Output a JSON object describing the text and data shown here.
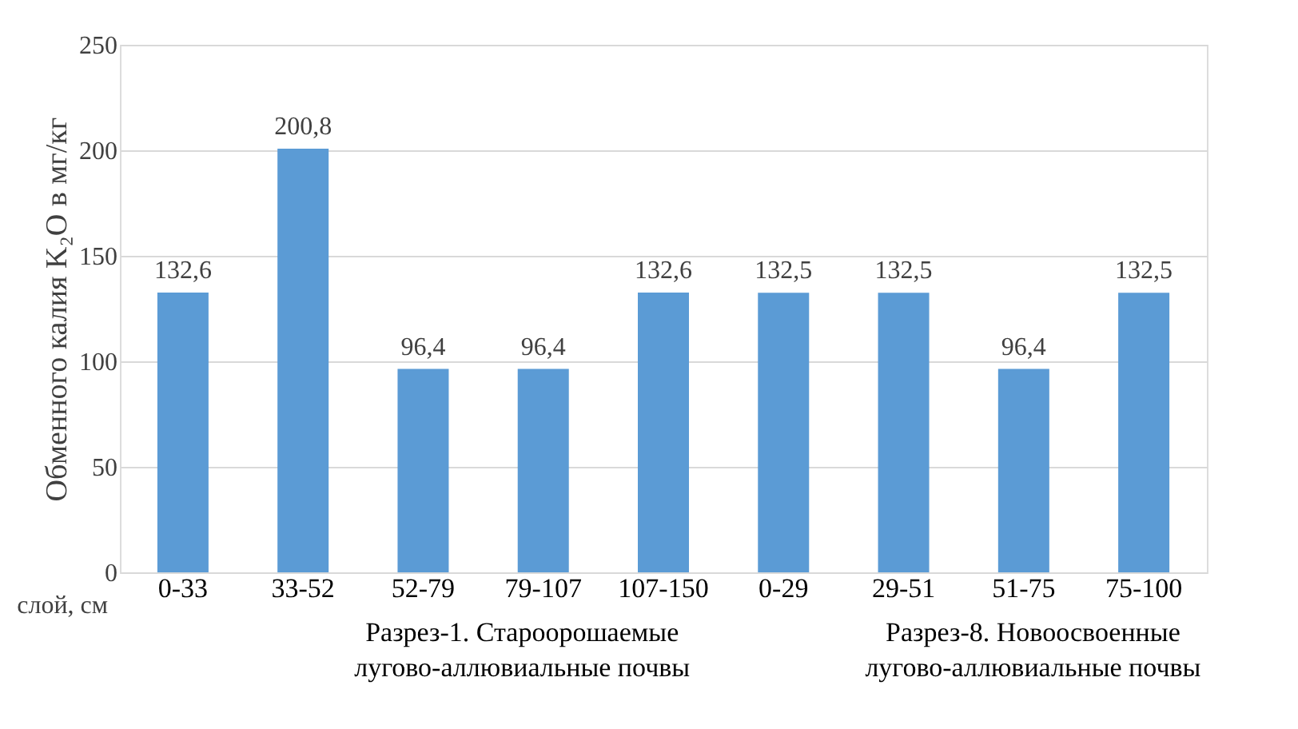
{
  "chart_data": {
    "type": "bar",
    "categories": [
      "0-33",
      "33-52",
      "52-79",
      "79-107",
      "107-150",
      "0-29",
      "29-51",
      "51-75",
      "75-100"
    ],
    "values": [
      132.6,
      200.8,
      96.4,
      96.4,
      132.6,
      132.5,
      132.5,
      96.4,
      132.5
    ],
    "value_labels": [
      "132,6",
      "200,8",
      "96,4",
      "96,4",
      "132,6",
      "132,5",
      "132,5",
      "96,4",
      "132,5"
    ],
    "color": "#5b9bd5",
    "ylabel": "Обменного калия K₂O в мг/кг",
    "xlabel": "слой, см",
    "ylim": [
      0,
      250
    ],
    "yticks": [
      0,
      50,
      100,
      150,
      200,
      250
    ],
    "grid": "y",
    "annotations": [
      "Разрез-1. Староорошаемые\nлугово-аллювиальные почвы",
      "Разрез-8. Новоосвоенные\nлугово-аллювиальные почвы"
    ]
  }
}
